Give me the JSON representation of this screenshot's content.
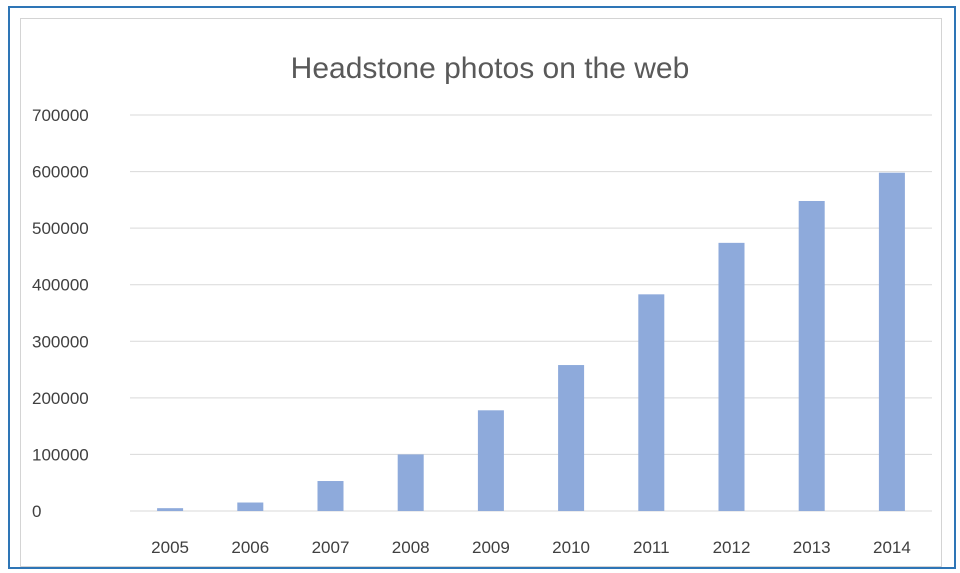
{
  "chart_data": {
    "type": "bar",
    "title": "Headstone photos on the web",
    "categories": [
      "2005",
      "2006",
      "2007",
      "2008",
      "2009",
      "2010",
      "2011",
      "2012",
      "2013",
      "2014"
    ],
    "series": [
      {
        "values": [
          5000,
          15000,
          53000,
          100000,
          178000,
          258000,
          383000,
          474000,
          548000,
          598000
        ]
      }
    ],
    "ylim": [
      0,
      700000
    ],
    "yticks": [
      0,
      100000,
      200000,
      300000,
      400000,
      500000,
      600000,
      700000
    ],
    "grid": true,
    "bar_color": "#8eaadb",
    "grid_color": "#d9d9d9",
    "xlabel": "",
    "ylabel": ""
  }
}
